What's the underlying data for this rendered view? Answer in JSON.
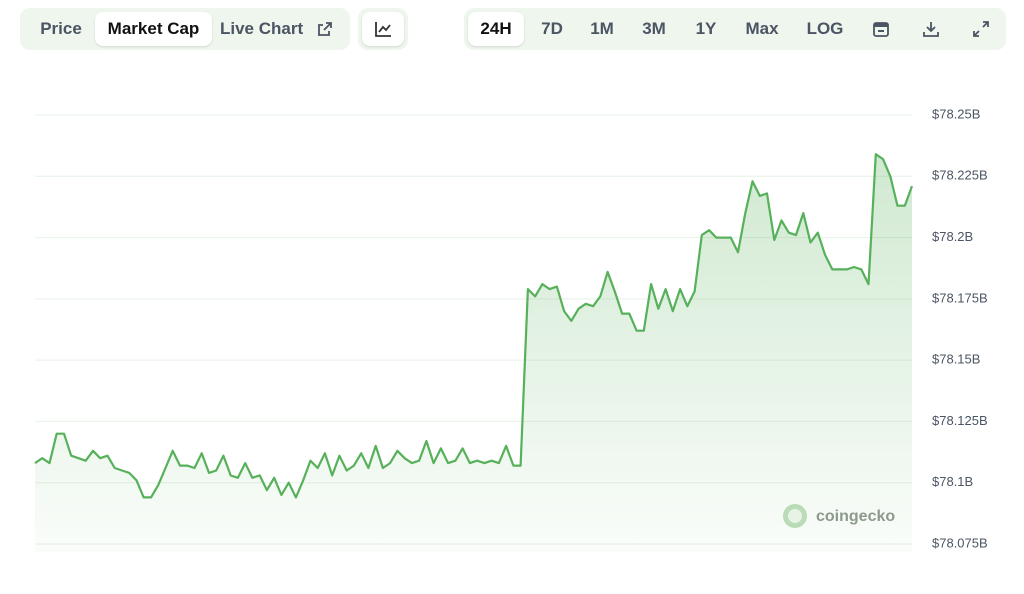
{
  "toolbar": {
    "tabs": [
      "Price",
      "Market Cap",
      "Live Chart"
    ],
    "ranges": [
      "24H",
      "7D",
      "1M",
      "3M",
      "1Y",
      "Max",
      "LOG"
    ]
  },
  "watermark": "coingecko",
  "chart_data": {
    "type": "line",
    "color": "#57b05a",
    "grid": true,
    "values": [
      78.108,
      78.11,
      78.108,
      78.12,
      78.12,
      78.111,
      78.11,
      78.109,
      78.113,
      78.11,
      78.111,
      78.106,
      78.105,
      78.104,
      78.101,
      78.094,
      78.094,
      78.099,
      78.106,
      78.113,
      78.107,
      78.107,
      78.106,
      78.112,
      78.104,
      78.105,
      78.111,
      78.103,
      78.102,
      78.108,
      78.102,
      78.103,
      78.097,
      78.102,
      78.095,
      78.1,
      78.094,
      78.101,
      78.109,
      78.106,
      78.112,
      78.103,
      78.111,
      78.105,
      78.107,
      78.112,
      78.106,
      78.115,
      78.106,
      78.108,
      78.113,
      78.11,
      78.108,
      78.109,
      78.117,
      78.108,
      78.114,
      78.108,
      78.109,
      78.114,
      78.108,
      78.109,
      78.108,
      78.109,
      78.108,
      78.115,
      78.107,
      78.107,
      78.179,
      78.176,
      78.181,
      78.179,
      78.18,
      78.17,
      78.166,
      78.171,
      78.173,
      78.172,
      78.176,
      78.186,
      78.178,
      78.169,
      78.169,
      78.162,
      78.162,
      78.181,
      78.171,
      78.179,
      78.17,
      78.179,
      78.172,
      78.178,
      78.201,
      78.203,
      78.2,
      78.2,
      78.2,
      78.194,
      78.21,
      78.223,
      78.217,
      78.218,
      78.199,
      78.207,
      78.202,
      78.201,
      78.21,
      78.198,
      78.202,
      78.193,
      78.187,
      78.187,
      78.187,
      78.188,
      78.187,
      78.181,
      78.234,
      78.232,
      78.225,
      78.213,
      78.213,
      78.221
    ],
    "ylim": [
      78.075,
      78.25
    ],
    "yticks": [
      {
        "value": 78.25,
        "label": "$78.25B"
      },
      {
        "value": 78.225,
        "label": "$78.225B"
      },
      {
        "value": 78.2,
        "label": "$78.2B"
      },
      {
        "value": 78.175,
        "label": "$78.175B"
      },
      {
        "value": 78.15,
        "label": "$78.15B"
      },
      {
        "value": 78.125,
        "label": "$78.125B"
      },
      {
        "value": 78.1,
        "label": "$78.1B"
      },
      {
        "value": 78.075,
        "label": "$78.075B"
      }
    ]
  }
}
